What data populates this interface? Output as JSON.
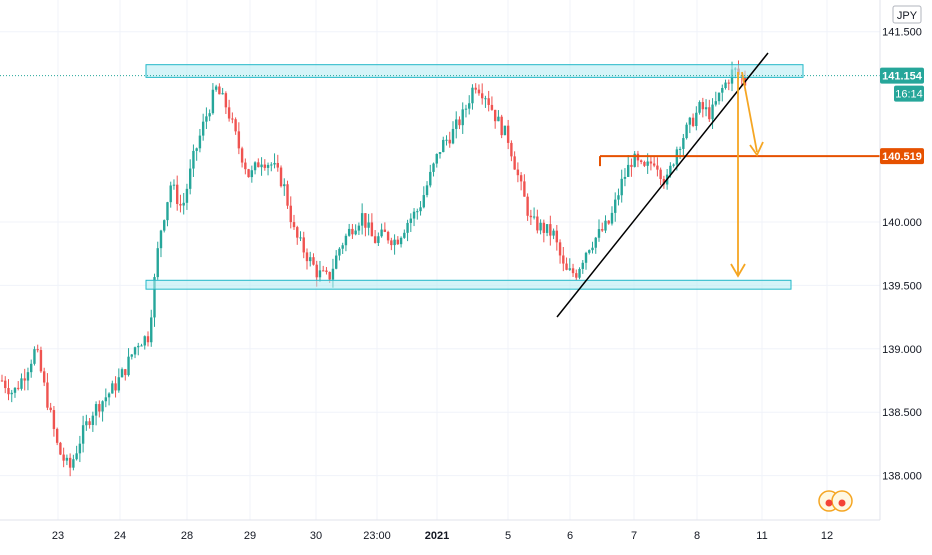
{
  "currency_label": "JPY",
  "chart_data": {
    "type": "candlestick",
    "ylim": [
      137.65,
      141.75
    ],
    "y_ticks": [
      "141.500",
      "140.000",
      "139.500",
      "139.000",
      "138.500",
      "138.000"
    ],
    "x_tick_labels": [
      {
        "label": "23",
        "bold": false
      },
      {
        "label": "24",
        "bold": false
      },
      {
        "label": "28",
        "bold": false
      },
      {
        "label": "29",
        "bold": false
      },
      {
        "label": "30",
        "bold": false
      },
      {
        "label": "23:00",
        "bold": false
      },
      {
        "label": "2021",
        "bold": true
      },
      {
        "label": "5",
        "bold": false
      },
      {
        "label": "6",
        "bold": false
      },
      {
        "label": "7",
        "bold": false
      },
      {
        "label": "8",
        "bold": false
      },
      {
        "label": "11",
        "bold": false
      },
      {
        "label": "12",
        "bold": false
      }
    ],
    "grid": true,
    "current_price": "141.154",
    "countdown": "16:14",
    "level_price": "140.519",
    "resistance_zone": [
      141.14,
      141.24
    ],
    "support_zone": [
      139.47,
      139.54
    ],
    "level_value": 140.519,
    "price_path": [
      138.75,
      138.65,
      138.8,
      139.0,
      138.6,
      138.2,
      138.05,
      138.3,
      138.5,
      138.6,
      138.7,
      138.85,
      139.05,
      139.1,
      139.9,
      140.3,
      140.1,
      140.5,
      140.8,
      141.05,
      140.9,
      140.6,
      140.35,
      140.5,
      140.45,
      140.3,
      139.9,
      139.75,
      139.6,
      139.55,
      139.8,
      139.95,
      140.05,
      139.85,
      139.9,
      139.85,
      140.0,
      140.1,
      140.35,
      140.6,
      140.7,
      140.85,
      141.1,
      141.0,
      140.8,
      140.65,
      140.3,
      140.0,
      139.95,
      139.9,
      139.6,
      139.6,
      139.8,
      139.9,
      140.0,
      140.3,
      140.5,
      140.4,
      140.5,
      140.3,
      140.6,
      140.75,
      140.9,
      140.85,
      141.05,
      141.2,
      141.1
    ]
  }
}
